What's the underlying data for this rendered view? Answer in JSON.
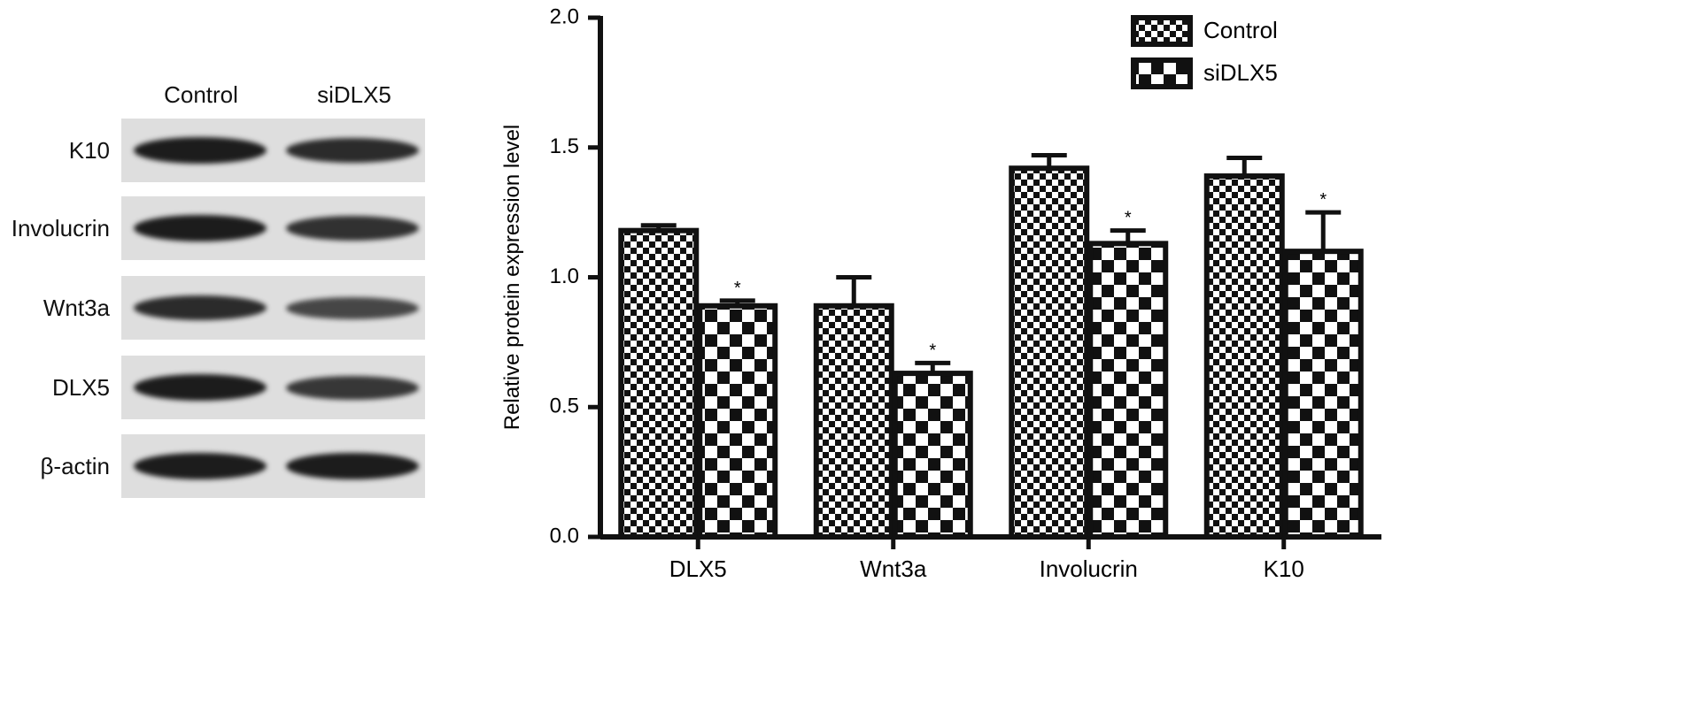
{
  "blot": {
    "lanes": [
      "Control",
      "siDLX5"
    ],
    "rows": [
      {
        "label": "K10",
        "intensity": [
          1.0,
          0.85
        ]
      },
      {
        "label": "Involucrin",
        "intensity": [
          1.0,
          0.8
        ]
      },
      {
        "label": "Wnt3a",
        "intensity": [
          0.85,
          0.6
        ]
      },
      {
        "label": "DLX5",
        "intensity": [
          1.0,
          0.75
        ]
      },
      {
        "label": "β-actin",
        "intensity": [
          1.0,
          1.0
        ]
      }
    ]
  },
  "chart_data": {
    "type": "bar",
    "categories": [
      "DLX5",
      "Wnt3a",
      "Involucrin",
      "K10"
    ],
    "series": [
      {
        "name": "Control",
        "values": [
          1.18,
          0.89,
          1.42,
          1.39
        ],
        "errors": [
          0.02,
          0.11,
          0.05,
          0.07
        ],
        "pattern": "small-checker"
      },
      {
        "name": "siDLX5",
        "values": [
          0.89,
          0.63,
          1.13,
          1.1
        ],
        "errors": [
          0.02,
          0.04,
          0.05,
          0.15
        ],
        "pattern": "large-checker"
      }
    ],
    "significance": [
      [
        "",
        "*"
      ],
      [
        "",
        "*"
      ],
      [
        "",
        "*"
      ],
      [
        "",
        "*"
      ]
    ],
    "title": "",
    "xlabel": "",
    "ylabel": "Relative protein expression level",
    "ylim": [
      0.0,
      2.0
    ],
    "yticks": [
      "0.0",
      "0.5",
      "1.0",
      "1.5",
      "2.0"
    ],
    "grid": false,
    "legend_position": "top-right"
  }
}
